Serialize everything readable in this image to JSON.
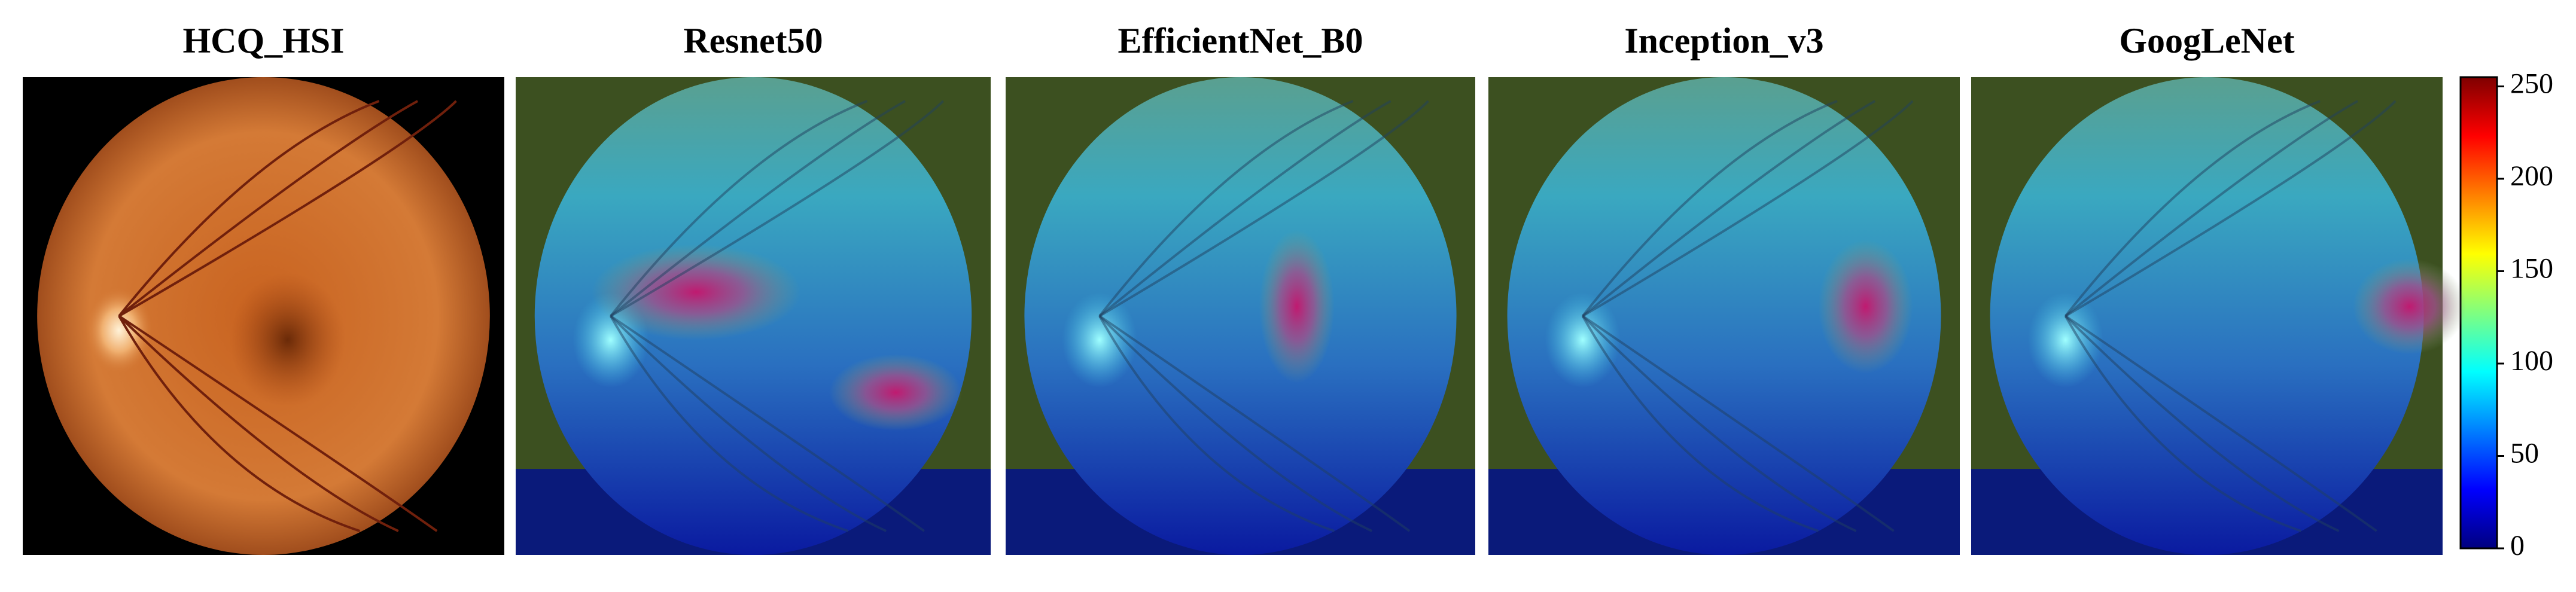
{
  "panels": [
    {
      "title": "HCQ_HSI"
    },
    {
      "title": "Resnet50"
    },
    {
      "title": "EfficientNet_B0"
    },
    {
      "title": "Inception_v3"
    },
    {
      "title": "GoogLeNet"
    }
  ],
  "colorbar": {
    "lim": [
      0,
      255
    ],
    "ticks": [
      0,
      50,
      100,
      150,
      200,
      250
    ]
  }
}
